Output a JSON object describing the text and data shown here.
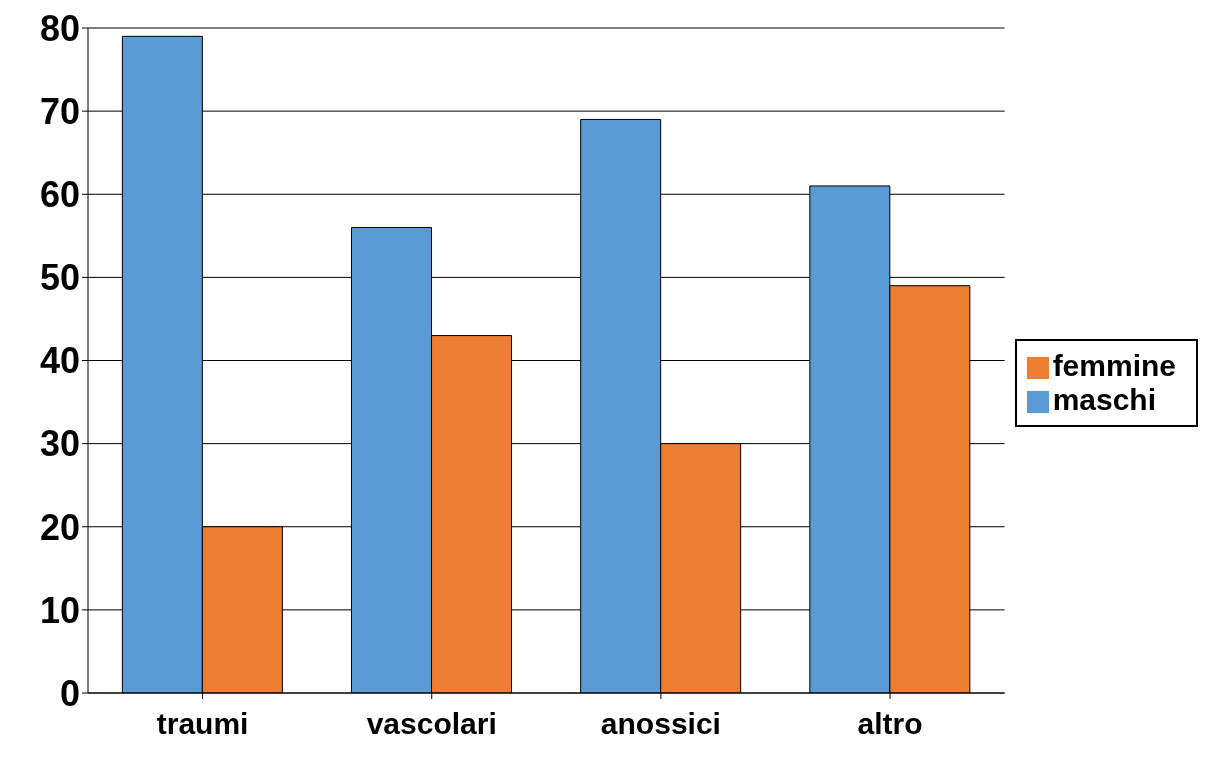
{
  "chart_data": {
    "type": "bar",
    "categories": [
      "traumi",
      "vascolari",
      "anossici",
      "altro"
    ],
    "series": [
      {
        "name": "maschi",
        "color": "#5b9bd5",
        "values": [
          79,
          56,
          69,
          61
        ]
      },
      {
        "name": "femmine",
        "color": "#ed7d31",
        "values": [
          20,
          43,
          30,
          49
        ]
      }
    ],
    "ylim": [
      0,
      80
    ],
    "yticks": [
      0,
      10,
      20,
      30,
      40,
      50,
      60,
      70,
      80
    ],
    "grid": "y",
    "legend": "right"
  }
}
